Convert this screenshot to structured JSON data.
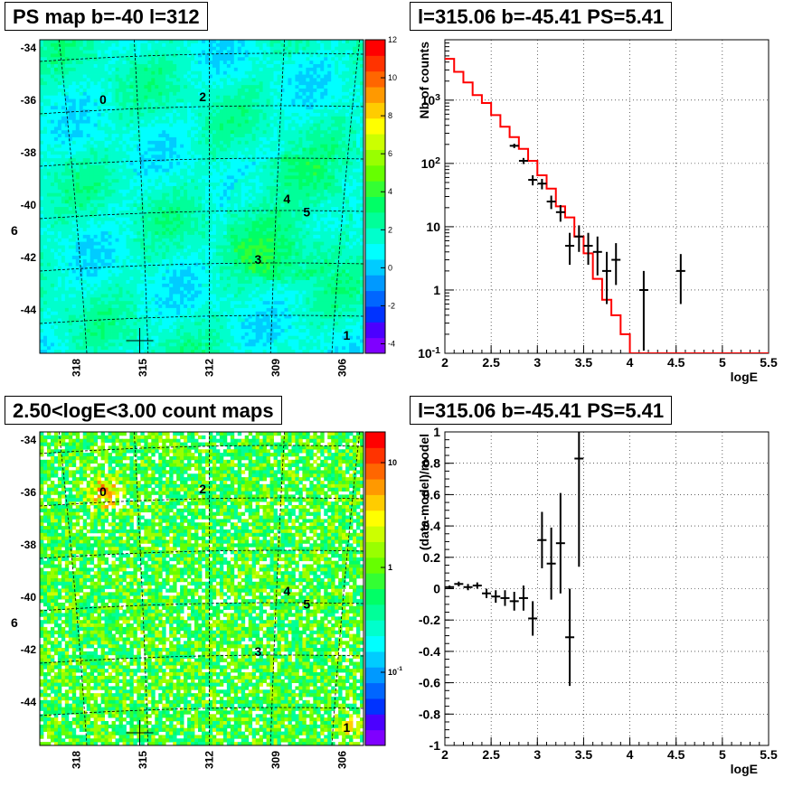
{
  "panels": {
    "map_top": {
      "title": "PS map b=-40 l=312"
    },
    "spec_top": {
      "title": "l=315.06 b=-45.41 PS=5.41"
    },
    "map_bottom": {
      "title": "2.50<logE<3.00 count maps"
    },
    "spec_bottom": {
      "title": "l=315.06 b=-45.41 PS=5.41"
    }
  },
  "colors": {
    "palette": [
      "#7f00ff",
      "#4b00ff",
      "#0033ff",
      "#0066ff",
      "#0099ff",
      "#00ccff",
      "#00ffff",
      "#00ffcc",
      "#00ff99",
      "#00ff66",
      "#33ff33",
      "#66ff00",
      "#99ff00",
      "#ccff00",
      "#ffff00",
      "#ffcc00",
      "#ff9900",
      "#ff6600",
      "#ff3300",
      "#ff0000"
    ],
    "model_line": "#ff0000",
    "data_marks": "#000000",
    "grid_line": "#000000"
  },
  "chart_data": [
    {
      "type": "heatmap",
      "title": "PS map b=-40 l=312",
      "xlabel": "",
      "ylabel": "",
      "x_ticks": [
        "318",
        "315",
        "312",
        "309",
        "306"
      ],
      "y_ticks": [
        "-34",
        "-36",
        "-38",
        "-40",
        "-42",
        "-44"
      ],
      "colorbar": {
        "range": [
          -4.5,
          12
        ],
        "ticks": [
          "12",
          "10",
          "8",
          "6",
          "4",
          "2",
          "0",
          "-2",
          "-4"
        ],
        "scale": "linear"
      },
      "sources": [
        {
          "label": "0",
          "l": 316.8,
          "b": -36.0
        },
        {
          "label": "2",
          "l": 312.3,
          "b": -35.9
        },
        {
          "label": "4",
          "l": 308.5,
          "b": -39.8
        },
        {
          "label": "5",
          "l": 307.6,
          "b": -40.3
        },
        {
          "label": "3",
          "l": 309.8,
          "b": -42.1
        },
        {
          "label": "1",
          "l": 305.8,
          "b": -45.0
        },
        {
          "label": "6",
          "l": 320.8,
          "b": -41.0
        }
      ],
      "marker_position": {
        "l": 315.06,
        "b": -45.41
      },
      "grid": true
    },
    {
      "type": "line",
      "title": "l=315.06 b=-45.41 PS=5.41",
      "xlabel": "logE",
      "ylabel": "Nb of counts",
      "xlim": [
        2,
        5.5
      ],
      "ylim": [
        0.1,
        9000
      ],
      "yscale": "log",
      "x_ticks": [
        "2",
        "2.5",
        "3",
        "3.5",
        "4",
        "4.5",
        "5",
        "5.5"
      ],
      "y_ticks": [
        "10^{-1}",
        "1",
        "10",
        "10^{2}",
        "10^{3}"
      ],
      "grid": true,
      "series": [
        {
          "kind": "step-model",
          "edges": [
            2.0,
            2.1,
            2.2,
            2.3,
            2.4,
            2.5,
            2.6,
            2.7,
            2.8,
            2.9,
            3.0,
            3.1,
            3.2,
            3.3,
            3.4,
            3.5,
            3.6,
            3.7,
            3.8,
            3.9,
            4.0,
            5.5
          ],
          "values": [
            4500,
            2800,
            1900,
            1200,
            900,
            580,
            380,
            260,
            170,
            110,
            65,
            40,
            21,
            14,
            7.0,
            3.8,
            1.5,
            0.7,
            0.4,
            0.2,
            0.1
          ]
        },
        {
          "kind": "points",
          "x": [
            2.95,
            3.05,
            3.15,
            3.25,
            3.35,
            3.45,
            3.55,
            3.65,
            3.75,
            3.85,
            4.15,
            4.55
          ],
          "y": [
            55,
            48,
            25,
            17,
            5,
            7,
            5,
            4,
            2,
            3,
            1,
            2
          ],
          "yerr_lo": [
            10,
            9,
            6,
            5,
            2.5,
            3,
            2.5,
            2.3,
            1.4,
            1.8,
            0.9,
            1.4
          ],
          "yerr_hi": [
            10,
            9,
            6,
            5,
            3,
            3.5,
            3,
            3,
            2,
            2.5,
            1.0,
            1.7
          ]
        },
        {
          "kind": "points-bright",
          "x": [
            2.75,
            2.85
          ],
          "y": [
            190,
            110
          ],
          "yerr_lo": [
            15,
            12
          ],
          "yerr_hi": [
            15,
            12
          ]
        }
      ]
    },
    {
      "type": "heatmap",
      "title": "2.50<logE<3.00 count maps",
      "xlabel": "",
      "ylabel": "",
      "x_ticks": [
        "318",
        "315",
        "312",
        "309",
        "306"
      ],
      "y_ticks": [
        "-34",
        "-36",
        "-38",
        "-40",
        "-42",
        "-44"
      ],
      "colorbar": {
        "scale": "log",
        "ticks": [
          "10",
          "1",
          "10^{-1}"
        ]
      },
      "sources": [
        {
          "label": "0",
          "l": 316.8,
          "b": -36.0
        },
        {
          "label": "2",
          "l": 312.3,
          "b": -35.9
        },
        {
          "label": "4",
          "l": 308.5,
          "b": -39.8
        },
        {
          "label": "5",
          "l": 307.6,
          "b": -40.3
        },
        {
          "label": "3",
          "l": 309.8,
          "b": -42.1
        },
        {
          "label": "1",
          "l": 305.8,
          "b": -45.0
        },
        {
          "label": "6",
          "l": 320.8,
          "b": -41.0
        }
      ],
      "marker_position": {
        "l": 315.06,
        "b": -45.41
      },
      "grid": true
    },
    {
      "type": "scatter",
      "title": "l=315.06 b=-45.41 PS=5.41",
      "xlabel": "logE",
      "ylabel": "(data-model)/model",
      "xlim": [
        2,
        5.5
      ],
      "ylim": [
        -1,
        1
      ],
      "x_ticks": [
        "2",
        "2.5",
        "3",
        "3.5",
        "4",
        "4.5",
        "5",
        "5.5"
      ],
      "y_ticks": [
        "1",
        "0.8",
        "0.6",
        "0.4",
        "0.2",
        "0",
        "-0.2",
        "-0.4",
        "-0.6",
        "-0.8",
        "-1"
      ],
      "grid": true,
      "series": [
        {
          "x": [
            2.05,
            2.15,
            2.25,
            2.35,
            2.45,
            2.55,
            2.65,
            2.75,
            2.85,
            2.95,
            3.05,
            3.15,
            3.25,
            3.35,
            3.45
          ],
          "y": [
            0.01,
            0.03,
            0.01,
            0.02,
            -0.03,
            -0.05,
            -0.06,
            -0.08,
            -0.06,
            -0.19,
            0.31,
            0.16,
            0.29,
            -0.31,
            0.83
          ],
          "err": [
            0.01,
            0.015,
            0.02,
            0.02,
            0.03,
            0.04,
            0.05,
            0.06,
            0.08,
            0.11,
            0.18,
            0.23,
            0.32,
            0.31,
            0.69
          ]
        }
      ]
    }
  ]
}
